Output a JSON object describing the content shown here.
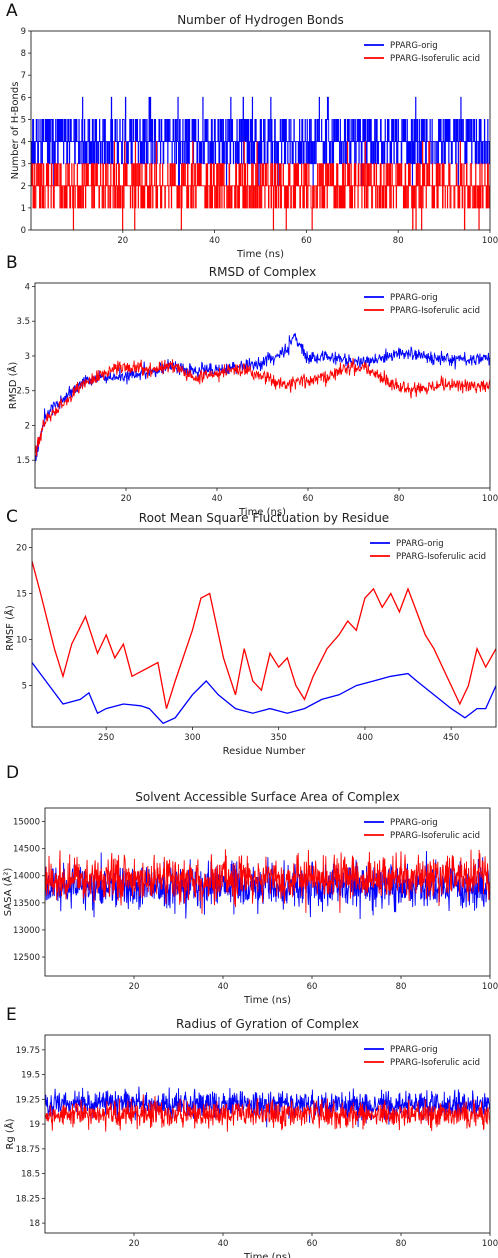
{
  "chart_data": [
    {
      "panel": "A",
      "type": "line",
      "title": "Number of Hydrogen Bonds",
      "xlabel": "Time (ns)",
      "ylabel": "Number of H-Bonds",
      "xlim": [
        0,
        100
      ],
      "ylim": [
        0,
        9
      ],
      "xticks": [
        20,
        40,
        60,
        80,
        100
      ],
      "yticks": [
        0,
        1,
        2,
        3,
        4,
        5,
        6,
        7,
        8,
        9
      ],
      "legend_position": "top-right",
      "grid": false,
      "series": [
        {
          "name": "PPARG-orig",
          "color": "#0000ff",
          "mean": 4,
          "min": 1,
          "max": 7
        },
        {
          "name": "PPARG-Isoferulic acid",
          "color": "#ff0000",
          "mean": 2,
          "min": 0,
          "max": 5
        }
      ]
    },
    {
      "panel": "B",
      "type": "line",
      "title": "RMSD of Complex",
      "xlabel": "Time (ns)",
      "ylabel": "RMSD (Å)",
      "xlim": [
        0,
        100
      ],
      "ylim": [
        1.1,
        4.05
      ],
      "xticks": [
        20,
        40,
        60,
        80,
        100
      ],
      "yticks": [
        1.5,
        2.0,
        2.5,
        3.0,
        3.5,
        4.0
      ],
      "legend_position": "top-right",
      "grid": false,
      "series": [
        {
          "name": "PPARG-orig",
          "color": "#0000ff",
          "x": [
            0,
            2,
            5,
            10,
            15,
            20,
            25,
            30,
            35,
            40,
            45,
            50,
            55,
            57,
            60,
            65,
            70,
            75,
            80,
            85,
            90,
            95,
            100
          ],
          "y": [
            1.5,
            2.1,
            2.3,
            2.6,
            2.7,
            2.7,
            2.75,
            2.85,
            2.8,
            2.8,
            2.85,
            2.9,
            3.05,
            3.3,
            2.95,
            3.0,
            2.9,
            2.95,
            3.05,
            3.0,
            2.95,
            2.95,
            2.95
          ]
        },
        {
          "name": "PPARG-Isoferulic acid",
          "color": "#ff0000",
          "x": [
            0,
            2,
            5,
            10,
            15,
            20,
            25,
            30,
            35,
            40,
            45,
            50,
            55,
            60,
            65,
            70,
            75,
            80,
            85,
            90,
            95,
            100
          ],
          "y": [
            1.6,
            2.05,
            2.25,
            2.55,
            2.75,
            2.85,
            2.8,
            2.85,
            2.7,
            2.75,
            2.8,
            2.7,
            2.6,
            2.65,
            2.7,
            2.85,
            2.75,
            2.55,
            2.5,
            2.6,
            2.55,
            2.6
          ]
        }
      ]
    },
    {
      "panel": "C",
      "type": "line",
      "title": "Root Mean Square Fluctuation by Residue",
      "xlabel": "Residue Number",
      "ylabel": "RMSF (Å)",
      "xlim": [
        207,
        476
      ],
      "ylim": [
        0.5,
        22
      ],
      "xticks": [
        250,
        300,
        350,
        400,
        450
      ],
      "yticks": [
        5,
        10,
        15,
        20
      ],
      "legend_position": "top-right",
      "grid": false,
      "series": [
        {
          "name": "PPARG-orig",
          "color": "#0000ff",
          "x": [
            207,
            215,
            225,
            235,
            240,
            245,
            250,
            260,
            270,
            275,
            283,
            290,
            300,
            308,
            315,
            325,
            335,
            345,
            355,
            365,
            375,
            385,
            395,
            405,
            415,
            425,
            430,
            440,
            450,
            458,
            465,
            470,
            476
          ],
          "y": [
            7.5,
            5.5,
            3.0,
            3.5,
            4.2,
            2.0,
            2.5,
            3.0,
            2.8,
            2.5,
            0.9,
            1.5,
            4.0,
            5.5,
            4.0,
            2.5,
            2.0,
            2.5,
            2.0,
            2.5,
            3.5,
            4.0,
            5.0,
            5.5,
            6.0,
            6.3,
            5.5,
            4.0,
            2.5,
            1.5,
            2.5,
            2.5,
            5.0
          ]
        },
        {
          "name": "PPARG-Isoferulic acid",
          "color": "#ff0000",
          "x": [
            207,
            212,
            220,
            225,
            230,
            238,
            245,
            250,
            255,
            260,
            265,
            280,
            285,
            290,
            300,
            305,
            310,
            318,
            325,
            330,
            335,
            340,
            345,
            350,
            355,
            360,
            365,
            370,
            378,
            385,
            390,
            395,
            400,
            405,
            410,
            415,
            420,
            425,
            430,
            435,
            440,
            445,
            450,
            455,
            460,
            465,
            470,
            476
          ],
          "y": [
            18.5,
            15.0,
            9.0,
            6.0,
            9.5,
            12.5,
            8.5,
            10.5,
            8.0,
            9.5,
            6.0,
            7.5,
            2.5,
            5.5,
            11.0,
            14.5,
            15.0,
            8.0,
            4.0,
            9.0,
            5.5,
            4.5,
            8.5,
            7.0,
            8.0,
            5.0,
            3.5,
            6.0,
            9.0,
            10.5,
            12.0,
            11.0,
            14.5,
            15.5,
            13.5,
            15.0,
            13.0,
            15.5,
            13.0,
            10.5,
            9.0,
            7.0,
            5.0,
            3.0,
            5.0,
            9.0,
            7.0,
            9.0
          ]
        }
      ]
    },
    {
      "panel": "D",
      "type": "line",
      "title": "Solvent Accessible Surface Area of Complex",
      "xlabel": "Time (ns)",
      "ylabel": "SASA (Å²)",
      "xlim": [
        0,
        100
      ],
      "ylim": [
        12150,
        15250
      ],
      "xticks": [
        20,
        40,
        60,
        80,
        100
      ],
      "yticks": [
        12500,
        13000,
        13500,
        14000,
        14500,
        15000
      ],
      "legend_position": "top-right",
      "grid": false,
      "series": [
        {
          "name": "PPARG-orig",
          "color": "#0000ff",
          "mean": 13800,
          "min": 12900,
          "max": 14600
        },
        {
          "name": "PPARG-Isoferulic acid",
          "color": "#ff0000",
          "mean": 13950,
          "min": 13300,
          "max": 15000
        }
      ]
    },
    {
      "panel": "E",
      "type": "line",
      "title": "Radius of Gyration of Complex",
      "xlabel": "Time (ns)",
      "ylabel": "Rg (Å)",
      "xlim": [
        0,
        100
      ],
      "ylim": [
        17.9,
        19.9
      ],
      "xticks": [
        20,
        40,
        60,
        80,
        100
      ],
      "yticks": [
        18.0,
        18.25,
        18.5,
        18.75,
        19.0,
        19.25,
        19.5,
        19.75
      ],
      "legend_position": "top-right",
      "grid": false,
      "series": [
        {
          "name": "PPARG-orig",
          "color": "#0000ff",
          "mean": 19.2,
          "min": 18.95,
          "max": 19.5
        },
        {
          "name": "PPARG-Isoferulic acid",
          "color": "#ff0000",
          "mean": 19.1,
          "min": 18.85,
          "max": 19.35
        }
      ]
    }
  ]
}
